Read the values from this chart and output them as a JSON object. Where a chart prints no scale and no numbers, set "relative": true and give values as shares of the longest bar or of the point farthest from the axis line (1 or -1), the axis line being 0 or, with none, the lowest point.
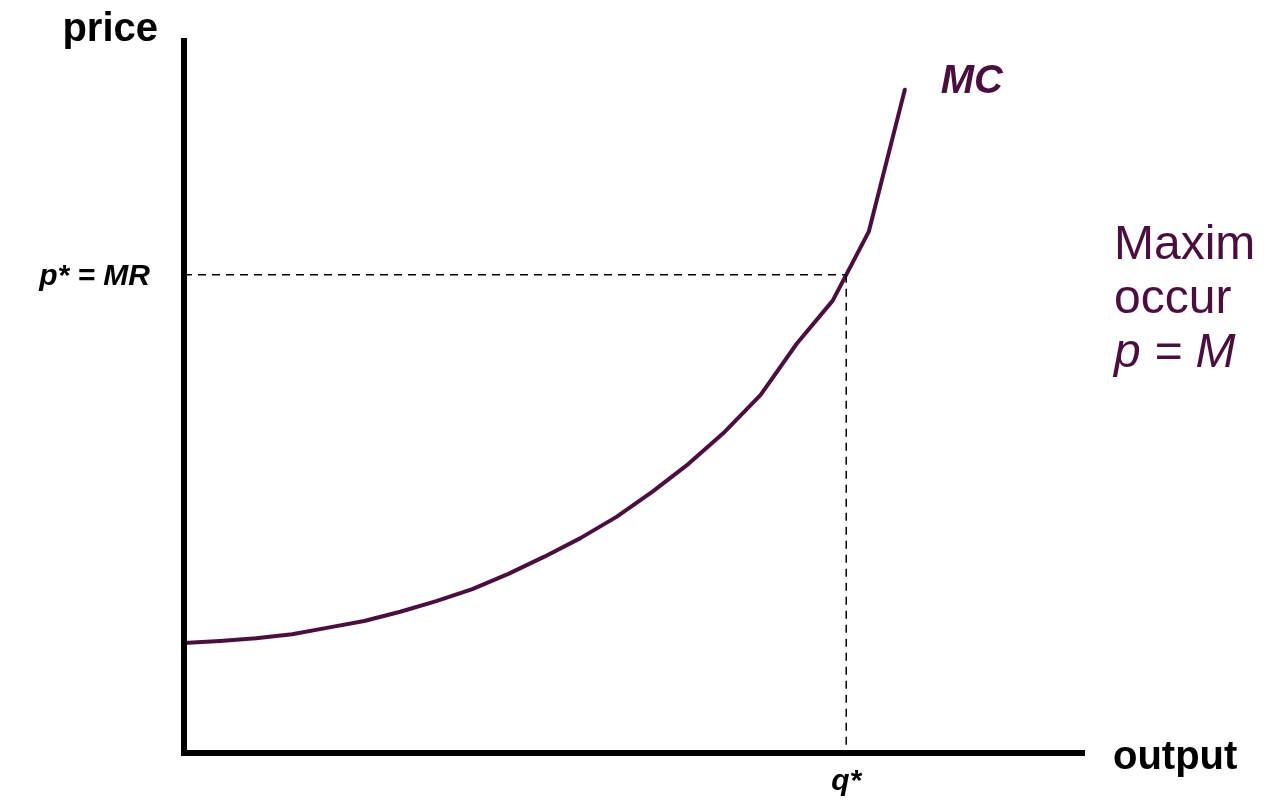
{
  "chart_data": {
    "type": "line",
    "relative": true,
    "xlabel": "output",
    "ylabel": "price",
    "categories": [
      null,
      null,
      null,
      null,
      null,
      null,
      null,
      null,
      null,
      null,
      null,
      null,
      null,
      null,
      null,
      null,
      null,
      null,
      null,
      null,
      null,
      null,
      null,
      null,
      null,
      null
    ],
    "series": [
      {
        "name": "MC",
        "color": "#4a0f3f",
        "values": [
          0.166,
          0.169,
          0.173,
          0.179,
          0.189,
          0.199,
          0.213,
          0.229,
          0.247,
          0.27,
          0.296,
          0.324,
          0.356,
          0.394,
          0.436,
          0.484,
          0.54,
          0.617,
          0.682,
          0.786,
          1,
          null,
          null,
          null,
          null,
          null
        ]
      }
    ],
    "ref_lines": [
      {
        "axis": "y",
        "value": 0.721,
        "label": "p* = MR",
        "line_style": "dashed",
        "color": "#000000"
      }
    ],
    "annotations": [
      "q*",
      "Maxim",
      "occur",
      "p = M"
    ]
  }
}
